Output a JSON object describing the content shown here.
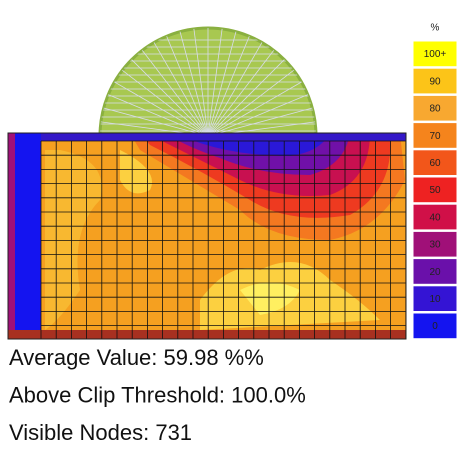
{
  "legend": {
    "title": "%",
    "items": [
      {
        "label": "100+",
        "color": "#ffff00"
      },
      {
        "label": "90",
        "color": "#fcc418"
      },
      {
        "label": "80",
        "color": "#f8a830"
      },
      {
        "label": "70",
        "color": "#f5841c"
      },
      {
        "label": "60",
        "color": "#f2561a"
      },
      {
        "label": "50",
        "color": "#ee2222"
      },
      {
        "label": "40",
        "color": "#d01048"
      },
      {
        "label": "30",
        "color": "#a01078"
      },
      {
        "label": "20",
        "color": "#6a10aa"
      },
      {
        "label": "10",
        "color": "#3414d4"
      },
      {
        "label": "0",
        "color": "#1414f0"
      }
    ]
  },
  "stats": [
    "Average Value: 59.98 %%",
    "Above Clip Threshold: 100.0%",
    "Visible Nodes: 731"
  ]
}
